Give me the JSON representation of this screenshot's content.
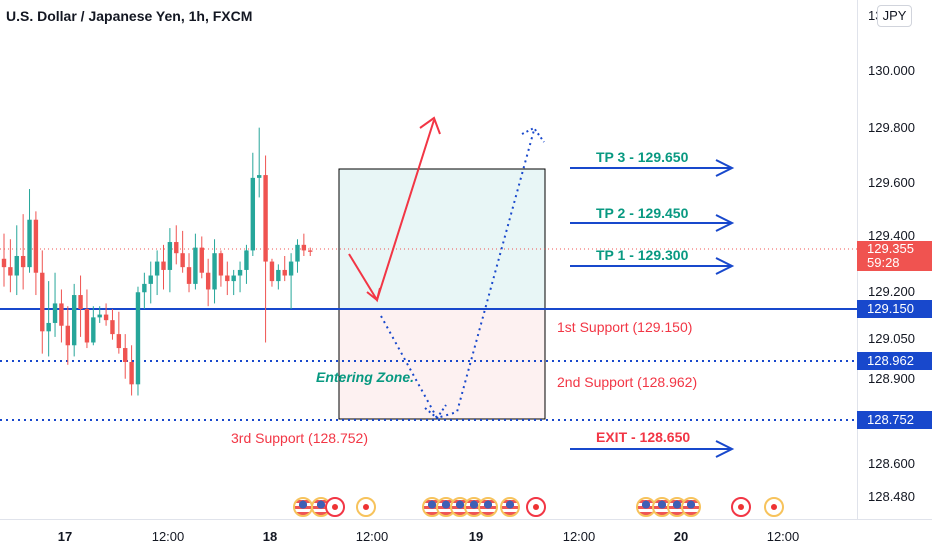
{
  "header": {
    "title": "U.S. Dollar / Japanese Yen, 1h, FXCM"
  },
  "currency_button": "JPY",
  "price_scale": {
    "top_partial": "13",
    "labels": [
      "130.000",
      "129.800",
      "129.600",
      "129.400",
      "129.200",
      "129.050",
      "128.900",
      "128.600",
      "128.480"
    ]
  },
  "price_tags": {
    "current": "129.355",
    "countdown": "59:28",
    "support1": "129.150",
    "support2": "128.962",
    "support3": "128.752"
  },
  "time_axis": [
    "17",
    "12:00",
    "18",
    "12:00",
    "19",
    "12:00",
    "20",
    "12:00"
  ],
  "annotations": {
    "tp3": "TP 3 - 129.650",
    "tp2": "TP 2 - 129.450",
    "tp1": "TP 1 - 129.300",
    "support1": "1st Support (129.150)",
    "support2": "2nd Support (128.962)",
    "support3": "3rd Support (128.752)",
    "exit": "EXIT - 128.650",
    "entering_zone": "Entering Zone."
  },
  "colors": {
    "bull": "#26a69a",
    "bear": "#ef5350",
    "line_blue": "#1848cc",
    "arrow_red": "#f23645",
    "arrow_blue": "#1848cc"
  },
  "chart_data": {
    "type": "candlestick",
    "title": "U.S. Dollar / Japanese Yen, 1h, FXCM",
    "y_range": [
      128.42,
      130.12
    ],
    "horizontal_levels": [
      129.15,
      128.962,
      128.752
    ],
    "current_price": 129.355,
    "ohlc": [
      [
        129.33,
        129.42,
        129.23,
        129.3
      ],
      [
        129.3,
        129.4,
        129.21,
        129.27
      ],
      [
        129.27,
        129.45,
        129.2,
        129.34
      ],
      [
        129.34,
        129.49,
        129.22,
        129.3
      ],
      [
        129.3,
        129.58,
        129.28,
        129.47
      ],
      [
        129.47,
        129.5,
        129.2,
        129.28
      ],
      [
        129.28,
        129.36,
        128.99,
        129.07
      ],
      [
        129.07,
        129.25,
        128.98,
        129.1
      ],
      [
        129.1,
        129.28,
        129.05,
        129.17
      ],
      [
        129.17,
        129.22,
        129.03,
        129.09
      ],
      [
        129.09,
        129.16,
        128.95,
        129.02
      ],
      [
        129.02,
        129.24,
        128.98,
        129.2
      ],
      [
        129.2,
        129.27,
        129.05,
        129.15
      ],
      [
        129.15,
        129.22,
        129.01,
        129.03
      ],
      [
        129.03,
        129.16,
        129.02,
        129.12
      ],
      [
        129.12,
        129.16,
        129.1,
        129.13
      ],
      [
        129.13,
        129.17,
        129.09,
        129.11
      ],
      [
        129.11,
        129.15,
        129.04,
        129.06
      ],
      [
        129.06,
        129.14,
        128.99,
        129.01
      ],
      [
        129.01,
        129.06,
        128.9,
        128.96
      ],
      [
        128.96,
        129.02,
        128.84,
        128.88
      ],
      [
        128.88,
        129.23,
        128.84,
        129.21
      ],
      [
        129.21,
        129.28,
        129.15,
        129.24
      ],
      [
        129.24,
        129.32,
        129.17,
        129.27
      ],
      [
        129.27,
        129.36,
        129.2,
        129.32
      ],
      [
        129.32,
        129.38,
        129.22,
        129.29
      ],
      [
        129.29,
        129.44,
        129.21,
        129.39
      ],
      [
        129.39,
        129.45,
        129.31,
        129.35
      ],
      [
        129.35,
        129.43,
        129.28,
        129.3
      ],
      [
        129.3,
        129.35,
        129.21,
        129.24
      ],
      [
        129.24,
        129.42,
        129.22,
        129.37
      ],
      [
        129.37,
        129.41,
        129.26,
        129.28
      ],
      [
        129.28,
        129.33,
        129.16,
        129.22
      ],
      [
        129.22,
        129.4,
        129.17,
        129.35
      ],
      [
        129.35,
        129.36,
        129.23,
        129.27
      ],
      [
        129.27,
        129.32,
        129.2,
        129.25
      ],
      [
        129.25,
        129.29,
        129.2,
        129.27
      ],
      [
        129.27,
        129.32,
        129.21,
        129.29
      ],
      [
        129.29,
        129.38,
        129.24,
        129.36
      ],
      [
        129.36,
        129.71,
        129.34,
        129.62
      ],
      [
        129.62,
        129.8,
        129.55,
        129.63
      ],
      [
        129.63,
        129.7,
        129.03,
        129.32
      ],
      [
        129.32,
        129.33,
        129.23,
        129.25
      ],
      [
        129.25,
        129.31,
        129.22,
        129.29
      ],
      [
        129.29,
        129.34,
        129.25,
        129.27
      ],
      [
        129.27,
        129.35,
        129.15,
        129.32
      ],
      [
        129.32,
        129.4,
        129.28,
        129.38
      ],
      [
        129.38,
        129.42,
        129.34,
        129.36
      ],
      [
        129.36,
        129.37,
        129.34,
        129.355
      ]
    ]
  }
}
